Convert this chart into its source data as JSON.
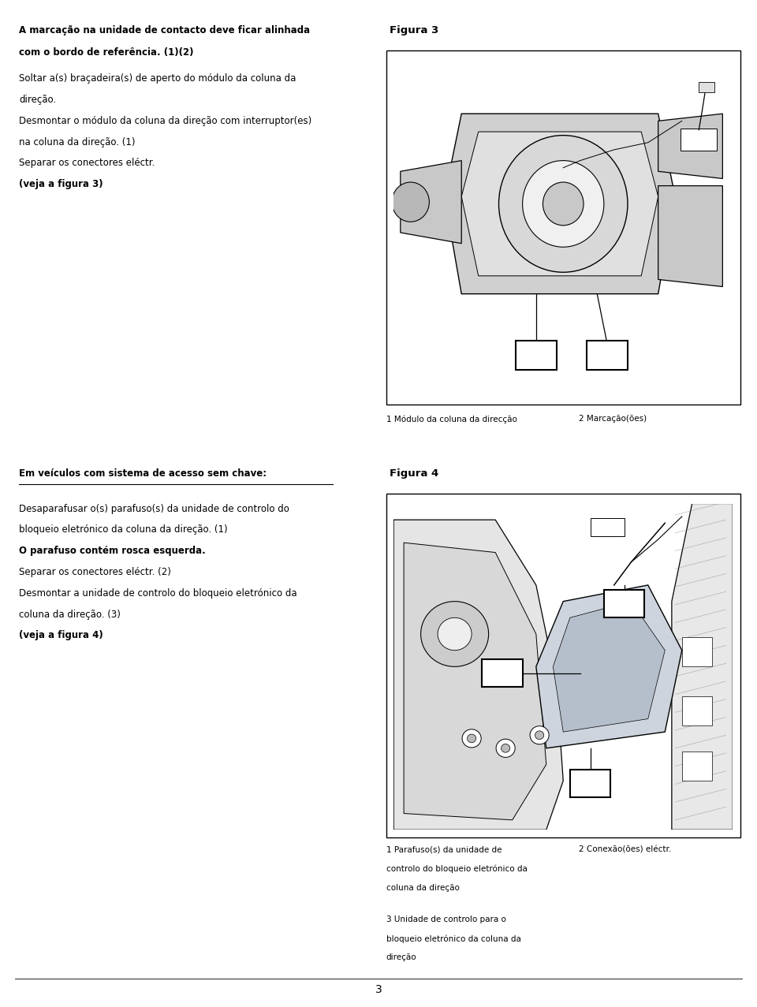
{
  "page_bg": "#ffffff",
  "page_number": "3",
  "section1_title_line1": "A marcação na unidade de contacto deve ficar alinhada",
  "section1_title_line2": "com o bordo de referência. (1)(2)",
  "section1_texts": [
    "Soltar a(s) braçadeira(s) de aperto do módulo da coluna da",
    "direção.",
    "Desmontar o módulo da coluna da direção com interruptor(es)",
    "na coluna da direção. (1)",
    "Separar os conectores eléctr.",
    "(veja a figura 3)"
  ],
  "section1_bold_indices": [
    5
  ],
  "figura3_title": "Figura 3",
  "fig3_caption1": "1 Módulo da coluna da direcção",
  "fig3_caption2": "2 Marcação(ões)",
  "section2_title": "Em veículos com sistema de acesso sem chave:",
  "section2_texts": [
    "Desaparafusar o(s) parafuso(s) da unidade de controlo do",
    "bloqueio eletrónico da coluna da direção. (1)",
    "O parafuso contém rosca esquerda.",
    "Separar os conectores eléctr. (2)",
    "Desmontar a unidade de controlo do bloqueio eletrónico da",
    "coluna da direção. (3)",
    "(veja a figura 4)"
  ],
  "section2_bold_indices": [
    2,
    6
  ],
  "figura4_title": "Figura 4",
  "fig4_cap1_lines": [
    "1 Parafuso(s) da unidade de",
    "controlo do bloqueio eletrónico da",
    "coluna da direção"
  ],
  "fig4_cap2": "2 Conexão(ões) eléctr.",
  "fig4_cap3_lines": [
    "3 Unidade de controlo para o",
    "bloqueio eletrónico da coluna da",
    "direção"
  ],
  "text_color": "#000000",
  "fig_border": "#000000"
}
